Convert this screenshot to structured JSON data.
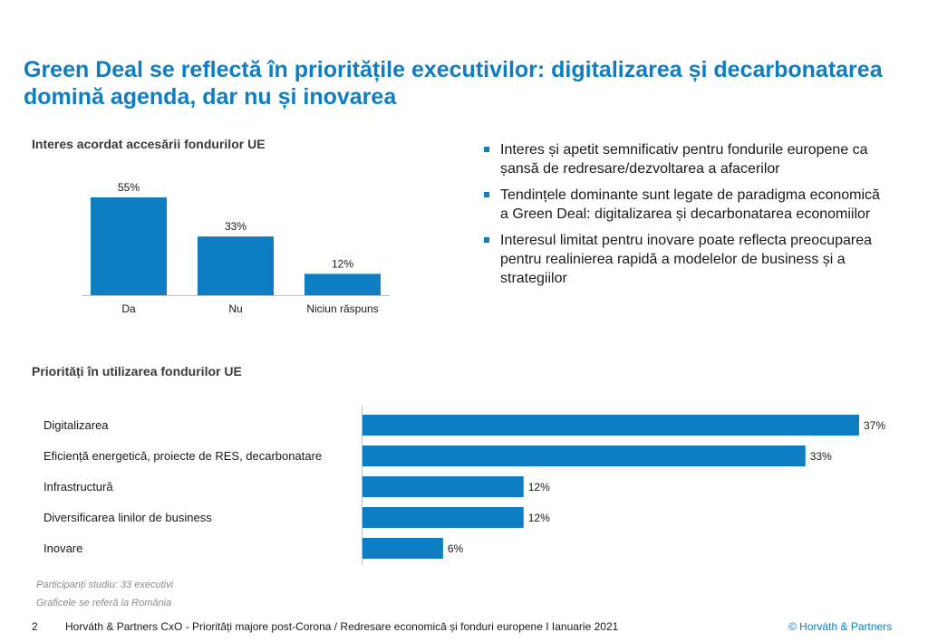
{
  "title": "Green Deal se reflectă în prioritățile executivilor: digitalizarea și decarbonatarea domină agenda, dar nu și inovarea",
  "accent_color": "#0e7dc2",
  "bullets": [
    "Interes și apetit semnificativ pentru fondurile europene ca șansă de redresare/dezvoltarea a afacerilor",
    "Tendințele dominante sunt legate de paradigma economică a Green Deal: digitalizarea și decarbonatarea economiilor",
    "Interesul limitat pentru inovare poate reflecta preocuparea pentru realinierea rapidă a modelelor de business și a strategiilor"
  ],
  "footnotes": [
    "Participanți studiu: 33 executivi",
    "Graficele se referă la România"
  ],
  "footer": {
    "page_number": "2",
    "text": "Horváth & Partners CxO - Priorități majore post-Corona / Redresare economică și fonduri europene  I Ianuarie 2021",
    "brand": "© Horváth & Partners"
  },
  "chart_data": [
    {
      "type": "bar",
      "title": "Interes acordat accesării fondurilor UE",
      "categories": [
        "Da",
        "Nu",
        "Niciun răspuns"
      ],
      "values": [
        55,
        33,
        12
      ],
      "value_labels": [
        "55%",
        "33%",
        "12%"
      ],
      "ylim": [
        0,
        55
      ],
      "grid": false,
      "color": "#0e7dc2"
    },
    {
      "type": "bar",
      "orientation": "horizontal",
      "title": "Priorități în utilizarea fondurilor UE",
      "categories": [
        "Digitalizarea",
        "Eficiență energetică, proiecte de RES, decarbonatare",
        "Infrastructură",
        "Diversificarea linilor de business",
        "Inovare"
      ],
      "values": [
        37,
        33,
        12,
        12,
        6
      ],
      "value_labels": [
        "37%",
        "33%",
        "12%",
        "12%",
        "6%"
      ],
      "xlim": [
        0,
        37
      ],
      "grid": false,
      "color": "#0e7dc2"
    }
  ]
}
